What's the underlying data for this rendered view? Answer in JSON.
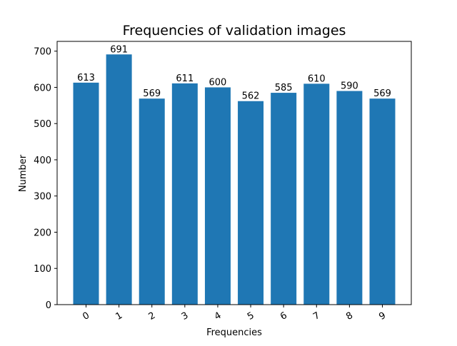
{
  "chart_data": {
    "type": "bar",
    "title": "Frequencies of validation images",
    "xlabel": "Frequencies",
    "ylabel": "Number",
    "categories": [
      "0",
      "1",
      "2",
      "3",
      "4",
      "5",
      "6",
      "7",
      "8",
      "9"
    ],
    "values": [
      613,
      691,
      569,
      611,
      600,
      562,
      585,
      610,
      590,
      569
    ],
    "data_labels": [
      "613",
      "691",
      "569",
      "611",
      "600",
      "562",
      "585",
      "610",
      "590",
      "569"
    ],
    "ylim": [
      0,
      727
    ],
    "y_ticks": [
      0,
      100,
      200,
      300,
      400,
      500,
      600,
      700
    ],
    "x_tick_rotation": 30,
    "grid": false,
    "legend": false,
    "bar_color": "#1f77b4"
  }
}
